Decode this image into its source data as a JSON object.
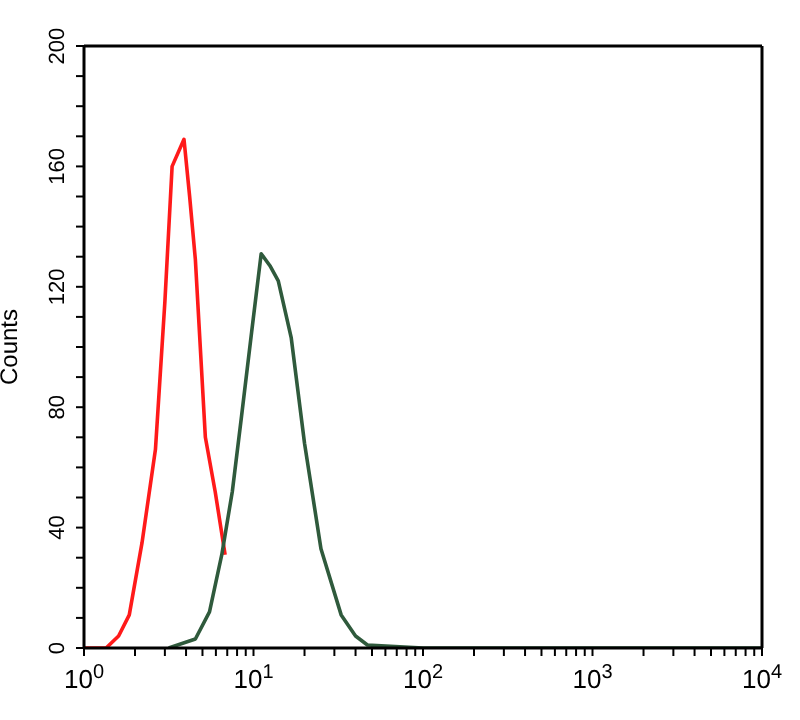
{
  "chart_data": {
    "type": "line",
    "ylabel": "Counts",
    "log": "x",
    "marker": "none",
    "line_style": "solid",
    "xlim": [
      1,
      10000
    ],
    "ylim": [
      0,
      200
    ],
    "xticks": [
      {
        "value": 1,
        "label": "10$^{0}$"
      },
      {
        "value": 2,
        "label": null
      },
      {
        "value": 3,
        "label": null
      },
      {
        "value": 4,
        "label": null
      },
      {
        "value": 5,
        "label": null
      },
      {
        "value": 6,
        "label": null
      },
      {
        "value": 7,
        "label": null
      },
      {
        "value": 8,
        "label": null
      },
      {
        "value": 9,
        "label": null
      },
      {
        "value": 10,
        "label": "10$^{1}$"
      },
      {
        "value": 20,
        "label": null
      },
      {
        "value": 30,
        "label": null
      },
      {
        "value": 40,
        "label": null
      },
      {
        "value": 50,
        "label": null
      },
      {
        "value": 60,
        "label": null
      },
      {
        "value": 70,
        "label": null
      },
      {
        "value": 80,
        "label": null
      },
      {
        "value": 90,
        "label": null
      },
      {
        "value": 100,
        "label": "10$^{2}$"
      },
      {
        "value": 200,
        "label": null
      },
      {
        "value": 300,
        "label": null
      },
      {
        "value": 400,
        "label": null
      },
      {
        "value": 500,
        "label": null
      },
      {
        "value": 600,
        "label": null
      },
      {
        "value": 700,
        "label": null
      },
      {
        "value": 800,
        "label": null
      },
      {
        "value": 900,
        "label": null
      },
      {
        "value": 1000,
        "label": "10$^{3}$"
      },
      {
        "value": 2000,
        "label": null
      },
      {
        "value": 3000,
        "label": null
      },
      {
        "value": 4000,
        "label": null
      },
      {
        "value": 5000,
        "label": null
      },
      {
        "value": 6000,
        "label": null
      },
      {
        "value": 7000,
        "label": null
      },
      {
        "value": 8000,
        "label": null
      },
      {
        "value": 9000,
        "label": null
      },
      {
        "value": 10000,
        "label": "10$^{4}$"
      }
    ],
    "yticks": [
      0,
      {
        "value": 10,
        "label": null
      },
      {
        "value": 20,
        "label": null
      },
      {
        "value": 30,
        "label": null
      },
      40,
      {
        "value": 50,
        "label": null
      },
      {
        "value": 60,
        "label": null
      },
      {
        "value": 70,
        "label": null
      },
      80,
      {
        "value": 90,
        "label": null
      },
      {
        "value": 100,
        "label": null
      },
      {
        "value": 110,
        "label": null
      },
      120,
      {
        "value": 130,
        "label": null
      },
      {
        "value": 140,
        "label": null
      },
      {
        "value": 150,
        "label": null
      },
      160,
      {
        "value": 170,
        "label": null
      },
      {
        "value": 180,
        "label": null
      },
      {
        "value": 190,
        "label": null
      },
      200
    ],
    "series": [
      {
        "color": "#ff1a1a",
        "x": [
          1,
          1.35,
          1.6,
          1.85,
          2.2,
          2.64,
          3.0,
          3.31,
          3.89,
          4.2,
          4.54,
          5.2,
          5.94,
          6.8
        ],
        "values": [
          0,
          0,
          4,
          11,
          35,
          66,
          115,
          160,
          169,
          150,
          129,
          70,
          52,
          31
        ]
      },
      {
        "color": "#2f5a3c",
        "x": [
          3.16,
          4.54,
          5.5,
          6.5,
          7.5,
          8.5,
          9.75,
          11.1,
          12.5,
          14,
          16.7,
          20,
          25,
          32.9,
          40,
          47,
          100,
          1000,
          10000
        ],
        "values": [
          0,
          3,
          12,
          31,
          52,
          77,
          105,
          131,
          127,
          122,
          103,
          68,
          33,
          11,
          4,
          1,
          0,
          0,
          0
        ]
      }
    ]
  }
}
